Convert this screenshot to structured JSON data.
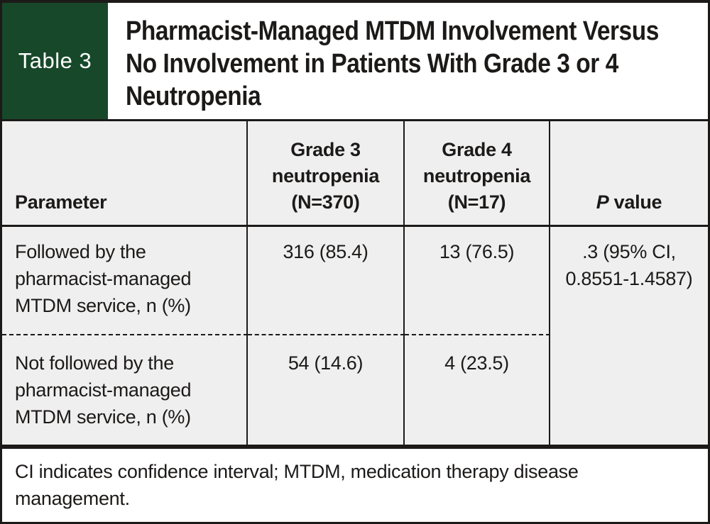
{
  "label": "Table 3",
  "title": {
    "lines": [
      "Pharmacist-Managed MTDM Involvement Versus",
      "No Involvement in Patients With Grade 3 or 4",
      "Neutropenia"
    ]
  },
  "table": {
    "columns": [
      {
        "label": "Parameter"
      },
      {
        "lines": [
          "Grade 3",
          "neutropenia",
          "(N=370)"
        ]
      },
      {
        "lines": [
          "Grade 4",
          "neutropenia",
          "(N=17)"
        ]
      },
      {
        "italic": "P",
        "label": " value"
      }
    ],
    "rows": [
      {
        "parameter": "Followed by the pharmacist-managed MTDM service, n (%)",
        "grade3": "316 (85.4)",
        "grade4": "13 (76.5)"
      },
      {
        "parameter": "Not followed by the pharmacist-managed MTDM service, n (%)",
        "grade3": "54 (14.6)",
        "grade4": "4 (23.5)"
      }
    ],
    "p_value": {
      "lines": [
        ".3 (95% CI,",
        "0.8551-1.4587)"
      ]
    }
  },
  "footnote": "CI indicates confidence interval; MTDM, medication therapy disease management.",
  "colors": {
    "header_green": "#17482a",
    "table_background": "#efefef",
    "ink": "#1c1a19"
  },
  "chart_data": {
    "type": "table",
    "title": "Pharmacist-Managed MTDM Involvement Versus No Involvement in Patients With Grade 3 or 4 Neutropenia",
    "columns": [
      "Parameter",
      "Grade 3 neutropenia (N=370)",
      "Grade 4 neutropenia (N=17)",
      "P value"
    ],
    "rows": [
      [
        "Followed by the pharmacist-managed MTDM service, n (%)",
        "316 (85.4)",
        "13 (76.5)",
        ".3 (95% CI, 0.8551-1.4587)"
      ],
      [
        "Not followed by the pharmacist-managed MTDM service, n (%)",
        "54 (14.6)",
        "4 (23.5)",
        ""
      ]
    ]
  }
}
